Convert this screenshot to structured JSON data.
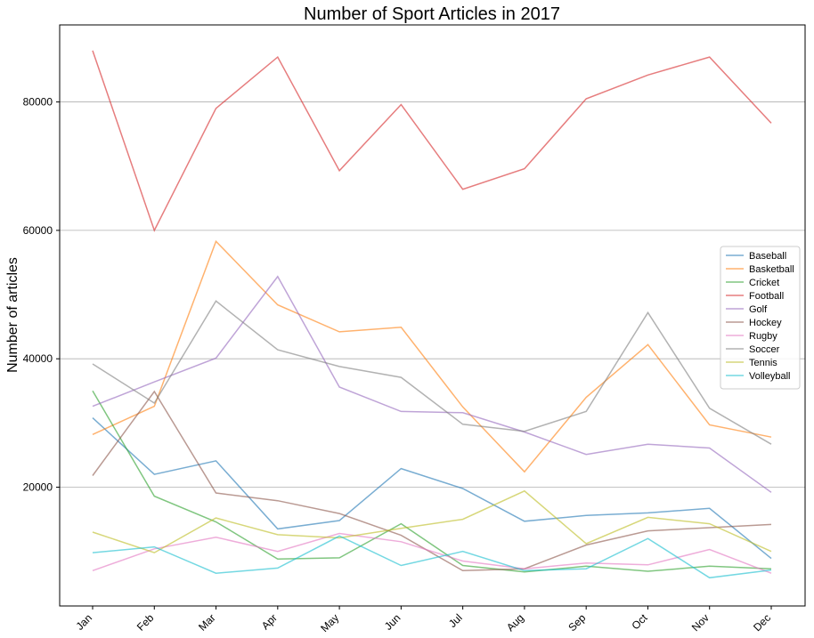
{
  "chart_data": {
    "type": "line",
    "title": "Number of Sport Articles in 2017",
    "xlabel": "",
    "ylabel": "Number of articles",
    "categories": [
      "Jan",
      "Feb",
      "Mar",
      "Apr",
      "May",
      "Jun",
      "Jul",
      "Aug",
      "Sep",
      "Oct",
      "Nov",
      "Dec"
    ],
    "ylim": [
      1500,
      92000
    ],
    "yticks": [
      20000,
      40000,
      60000,
      80000
    ],
    "grid": "y",
    "legend_position": "right",
    "series": [
      {
        "name": "Baseball",
        "color": "#1f77b4",
        "values": [
          30800,
          22000,
          24100,
          13500,
          14800,
          22900,
          19800,
          14700,
          15600,
          16000,
          16700,
          8900
        ]
      },
      {
        "name": "Basketball",
        "color": "#ff7f0e",
        "values": [
          28200,
          32600,
          58300,
          48400,
          44200,
          44900,
          32500,
          22400,
          34000,
          42200,
          29700,
          27800
        ]
      },
      {
        "name": "Cricket",
        "color": "#2ca02c",
        "values": [
          35000,
          18600,
          14600,
          8800,
          9000,
          14300,
          7800,
          6800,
          7700,
          6900,
          7700,
          7300
        ]
      },
      {
        "name": "Football",
        "color": "#d62728",
        "values": [
          88000,
          60000,
          79000,
          87000,
          69300,
          79600,
          66400,
          69600,
          80500,
          84200,
          87000,
          76700
        ]
      },
      {
        "name": "Golf",
        "color": "#9467bd",
        "values": [
          32600,
          36400,
          40100,
          52800,
          35600,
          31800,
          31600,
          28600,
          25100,
          26700,
          26100,
          19200
        ]
      },
      {
        "name": "Hockey",
        "color": "#8c564b",
        "values": [
          21800,
          34900,
          19100,
          17900,
          15900,
          12500,
          7000,
          7300,
          11000,
          13200,
          13700,
          14200
        ]
      },
      {
        "name": "Rugby",
        "color": "#e377c2",
        "values": [
          7000,
          10400,
          12200,
          10000,
          12800,
          11500,
          8500,
          7300,
          8200,
          7900,
          10300,
          6600
        ]
      },
      {
        "name": "Soccer",
        "color": "#7f7f7f",
        "values": [
          39200,
          33100,
          49000,
          41400,
          38800,
          37100,
          29800,
          28700,
          31800,
          47200,
          32300,
          26700
        ]
      },
      {
        "name": "Tennis",
        "color": "#bcbd22",
        "values": [
          13000,
          9800,
          15200,
          12600,
          12100,
          13600,
          15000,
          19400,
          11200,
          15300,
          14300,
          10000
        ]
      },
      {
        "name": "Volleyball",
        "color": "#17becf",
        "values": [
          9800,
          10700,
          6600,
          7400,
          12400,
          7800,
          10000,
          7000,
          7300,
          12000,
          5900,
          7100
        ]
      }
    ]
  }
}
